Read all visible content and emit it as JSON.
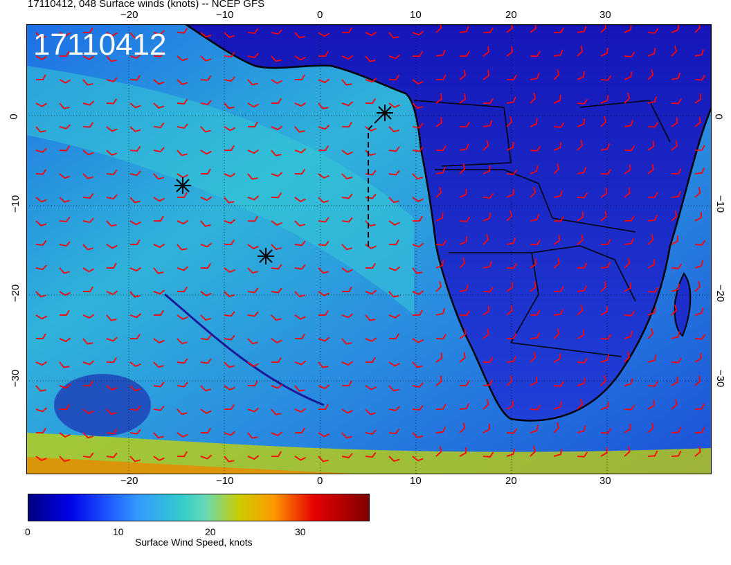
{
  "header": {
    "title": "17110412, 048 Surface winds (knots) -- NCEP GFS"
  },
  "map": {
    "timestamp_label": "17110412",
    "x_ticks_top": [
      "−20",
      "−10",
      "0",
      "10",
      "20",
      "30"
    ],
    "x_ticks_bottom": [
      "−20",
      "−10",
      "0",
      "10",
      "20",
      "30"
    ],
    "y_ticks_left": [
      "0",
      "−10",
      "−20",
      "−30"
    ],
    "y_ticks_right": [
      "0",
      "−10",
      "−20",
      "−30"
    ],
    "barb_color": "#ff0000",
    "coast_color": "#000000",
    "storm_markers": [
      {
        "lon": 6.5,
        "lat": 0.5
      },
      {
        "lon": -14.5,
        "lat": -8
      },
      {
        "lon": -6,
        "lat": -16
      }
    ]
  },
  "colorbar": {
    "ticks": [
      "0",
      "10",
      "20",
      "30"
    ],
    "label": "Surface Wind Speed, knots",
    "colors": [
      "#000080",
      "#0000e6",
      "#1a4dff",
      "#3399ff",
      "#33cccc",
      "#66d9b3",
      "#cccc00",
      "#ff9900",
      "#e60000",
      "#800000"
    ]
  }
}
